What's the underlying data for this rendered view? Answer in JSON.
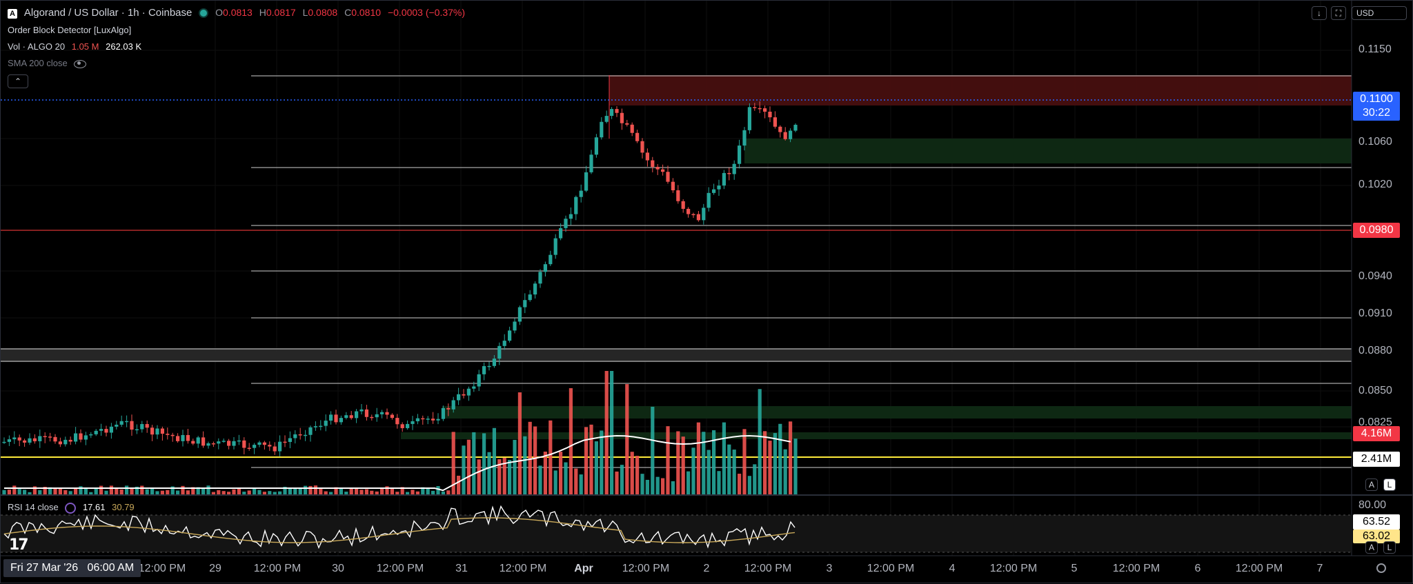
{
  "header": {
    "symbol_title": "Algorand / US Dollar · 1h · Coinbase",
    "ohlc": {
      "o_label": "O",
      "o": "0.0813",
      "h_label": "H",
      "h": "0.0817",
      "l_label": "L",
      "l": "0.0808",
      "c_label": "C",
      "c": "0.0810",
      "change": "−0.0003 (−0.37%)"
    },
    "currency": "USD"
  },
  "indicators": {
    "order_block": "Order Block Detector [LuxAlgo]",
    "volume_label": "Vol · ALGO 20",
    "volume_v1": "1.05 M",
    "volume_v2": "262.03 K",
    "sma_label": "SMA 200 close",
    "rsi_label": "RSI 14 close",
    "rsi_v1": "17.61",
    "rsi_v2": "30.79"
  },
  "price_axis": {
    "labels": [
      "0.1150",
      "0.1060",
      "0.1020",
      "0.0940",
      "0.0910",
      "0.0880",
      "0.0850",
      "0.0825"
    ],
    "current_price": "0.1100",
    "countdown": "30:22",
    "red_line_price": "0.0980",
    "vol_high": "4.16M",
    "vol_sma": "2.41M",
    "rsi_top": "80.00",
    "rsi_val1": "63.52",
    "rsi_val2": "63.02",
    "btn_auto": "A",
    "btn_log": "L"
  },
  "time_axis": {
    "crosshair_date": "Fri 27 Mar '26",
    "crosshair_time": "06:00 AM",
    "labels": [
      "12:00 PM",
      "29",
      "12:00 PM",
      "30",
      "12:00 PM",
      "31",
      "12:00 PM",
      "Apr",
      "12:00 PM",
      "2",
      "12:00 PM",
      "3",
      "12:00 PM",
      "4",
      "12:00 PM",
      "5",
      "12:00 PM",
      "6",
      "12:00 PM",
      "7"
    ]
  },
  "colors": {
    "up": "#26a69a",
    "down": "#ef5350",
    "accent": "#2962ff",
    "sma": "#ffeb3b"
  }
}
